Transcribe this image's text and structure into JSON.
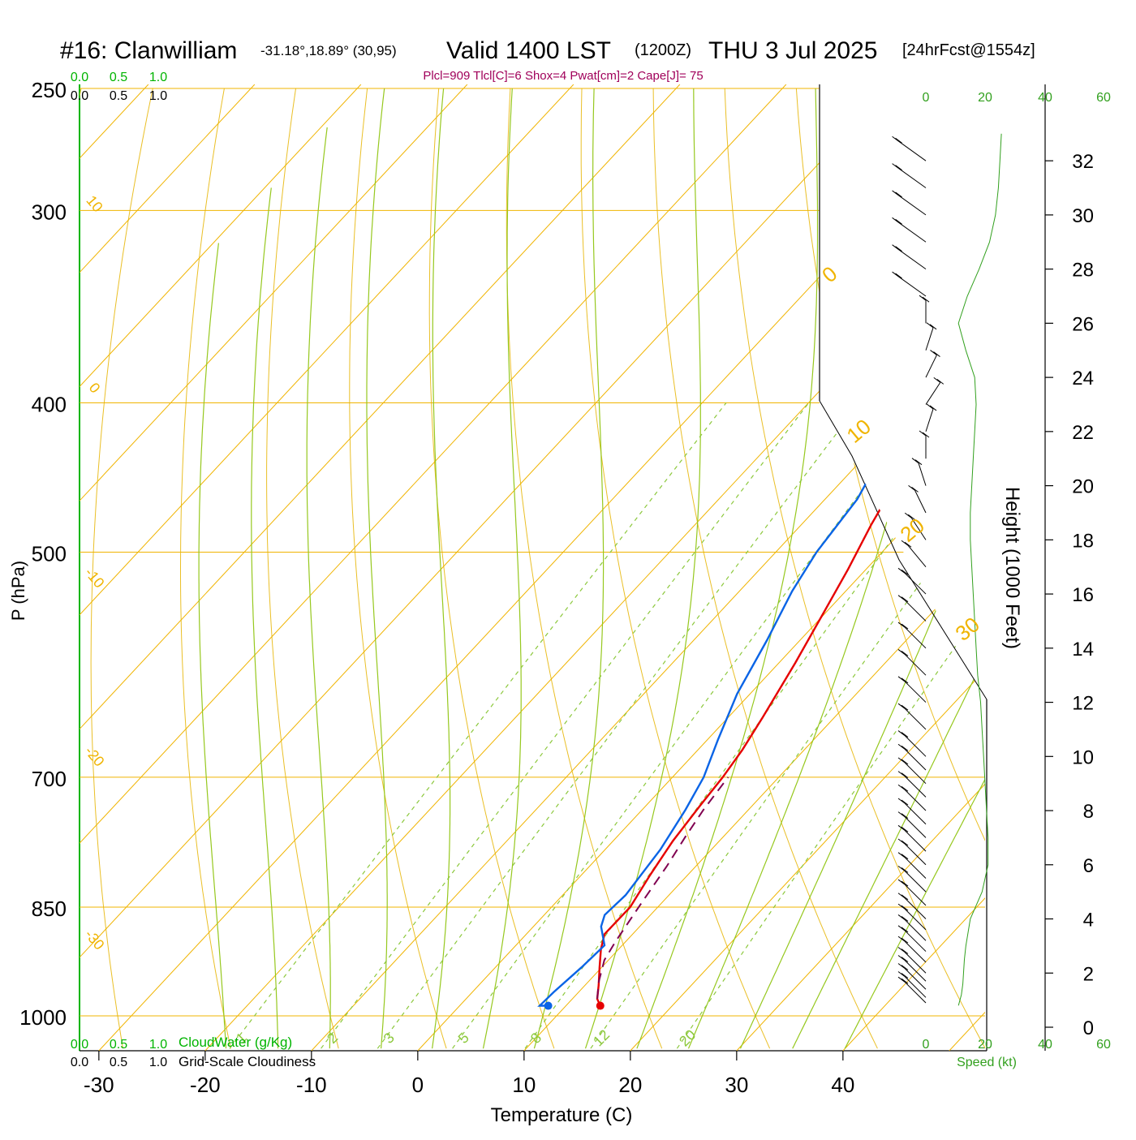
{
  "header": {
    "station": "#16: Clanwilliam",
    "coords": "-31.18°,18.89° (30,95)",
    "valid": "Valid 1400 LST",
    "zulu": "(1200Z)",
    "date": "THU 3 Jul 2025",
    "forecast": "[24hrFcst@1554z]",
    "indices": "Plcl=909 Tlcl[C]=6 Shox=4 Pwat[cm]=2 Cape[J]= 75"
  },
  "colors": {
    "temperature": "#e60000",
    "dewpoint": "#0a64e6",
    "parcel": "#800050",
    "isotherm": "#f0b400",
    "dry_adiabat": "#e6b400",
    "moist_adiabat": "#96c81e",
    "mixing_ratio": "#8cc83c",
    "speed": "#32a01e",
    "cloud": "#00a000",
    "indices": "#a0005a"
  },
  "chart_data": {
    "type": "line",
    "title": "#16: Clanwilliam",
    "xlabel": "Temperature (C)",
    "ylabel": "P (hPa)",
    "y2label": "Height (1000 Feet)",
    "xlim": [
      -34,
      36
    ],
    "ylim": [
      1030,
      250
    ],
    "pressure_ticks": [
      250,
      300,
      400,
      500,
      700,
      850,
      1000
    ],
    "temperature_ticks": [
      -30,
      -20,
      -10,
      0,
      10,
      20,
      30,
      40
    ],
    "height_ticks": [
      0,
      2,
      4,
      6,
      8,
      10,
      12,
      14,
      16,
      18,
      20,
      22,
      24,
      26,
      28,
      30,
      32
    ],
    "scale_top": {
      "cloud": [
        "0.0",
        "0.5",
        "1.0"
      ],
      "cloudiness": [
        "0.0",
        "0.5",
        "1.0"
      ],
      "speed": [
        "0",
        "20",
        "40",
        "60"
      ]
    },
    "scale_bottom": {
      "cloud": [
        "0.0",
        "0.5",
        "1.0"
      ],
      "cloud_label": "CloudWater (g/Kg)",
      "cloudiness": [
        "0.0",
        "0.5",
        "1.0"
      ],
      "cloudiness_label": "Grid-Scale Cloudiness",
      "speed": [
        "0",
        "20",
        "40",
        "60"
      ],
      "speed_label": "Speed (kt)"
    },
    "adiabat_labels_left": [
      "10",
      "0",
      "-10",
      "-20",
      "-30"
    ],
    "adiabat_labels_right": [
      "0",
      "10",
      "20",
      "30"
    ],
    "mixing_ratio_labels": [
      "1",
      "2",
      "3",
      "5",
      "8",
      "12",
      "20"
    ],
    "series": [
      {
        "name": "Temperature",
        "points": [
          [
            14.5,
            985
          ],
          [
            13.6,
            975
          ],
          [
            12.5,
            955
          ],
          [
            11.0,
            930
          ],
          [
            9.5,
            905
          ],
          [
            8.5,
            885
          ],
          [
            8.5,
            850
          ],
          [
            7.5,
            810
          ],
          [
            6.6,
            770
          ],
          [
            6.0,
            730
          ],
          [
            5.6,
            700
          ],
          [
            5.0,
            672
          ],
          [
            4.0,
            640
          ],
          [
            2.2,
            590
          ],
          [
            0.5,
            550
          ],
          [
            -1.2,
            513
          ],
          [
            -3.0,
            480
          ],
          [
            -4.5,
            450
          ],
          [
            -5.6,
            425
          ],
          [
            -6.6,
            405
          ],
          [
            -7.5,
            385
          ],
          [
            -8.0,
            365
          ],
          [
            -8.0,
            350
          ],
          [
            -7.2,
            335
          ],
          [
            -5.5,
            315
          ],
          [
            -3.5,
            297
          ],
          [
            -1.5,
            283
          ],
          [
            0.5,
            270
          ],
          [
            2.2,
            259
          ]
        ]
      },
      {
        "name": "Dewpoint",
        "points": [
          [
            9.6,
            985
          ],
          [
            8.8,
            985
          ],
          [
            8.9,
            965
          ],
          [
            9.3,
            930
          ],
          [
            9.5,
            900
          ],
          [
            7.5,
            875
          ],
          [
            6.8,
            860
          ],
          [
            7.0,
            835
          ],
          [
            6.2,
            780
          ],
          [
            5.0,
            735
          ],
          [
            3.8,
            700
          ],
          [
            1.8,
            662
          ],
          [
            -0.5,
            618
          ],
          [
            -2.5,
            570
          ],
          [
            -4.5,
            530
          ],
          [
            -5.7,
            500
          ],
          [
            -6.6,
            462
          ],
          [
            -8.5,
            428
          ],
          [
            -11.8,
            385
          ],
          [
            -16.0,
            355
          ],
          [
            -22.5,
            335
          ],
          [
            -27.2,
            308
          ],
          [
            -31.5,
            299
          ],
          [
            -32.6,
            285
          ],
          [
            -31.8,
            272
          ],
          [
            -31.0,
            260
          ]
        ]
      },
      {
        "name": "Parcel",
        "points": [
          [
            13.6,
            975
          ],
          [
            12.2,
            950
          ],
          [
            10.8,
            920
          ],
          [
            10.2,
            895
          ],
          [
            9.7,
            870
          ],
          [
            9.2,
            845
          ],
          [
            8.3,
            800
          ],
          [
            7.4,
            765
          ],
          [
            6.7,
            735
          ],
          [
            6.1,
            700
          ]
        ]
      }
    ],
    "height_profile_kft": [
      [
        0,
        26
      ],
      [
        1,
        26
      ],
      [
        2,
        26
      ],
      [
        3,
        24
      ],
      [
        4,
        22
      ],
      [
        5,
        20
      ],
      [
        6,
        20
      ],
      [
        7,
        18
      ],
      [
        8,
        17
      ],
      [
        9,
        15
      ],
      [
        10,
        14
      ],
      [
        11,
        14
      ],
      [
        12,
        14
      ],
      [
        13,
        13
      ],
      [
        14,
        13
      ],
      [
        15,
        12
      ],
      [
        16,
        12
      ],
      [
        17,
        12
      ],
      [
        18,
        12
      ],
      [
        19,
        12
      ],
      [
        20,
        12
      ],
      [
        21,
        12
      ],
      [
        22,
        12
      ],
      [
        23,
        13
      ],
      [
        24,
        14
      ],
      [
        25,
        16
      ],
      [
        26,
        14
      ],
      [
        27,
        16
      ],
      [
        28,
        18
      ],
      [
        29,
        21
      ],
      [
        30,
        23
      ],
      [
        31,
        22
      ],
      [
        32,
        22
      ],
      [
        33,
        22
      ]
    ],
    "speed_profile": [
      [
        0.8,
        11
      ],
      [
        1.2,
        12
      ],
      [
        1.6,
        12.5
      ],
      [
        2.5,
        13
      ],
      [
        3,
        13.5
      ],
      [
        4,
        15
      ],
      [
        5,
        19
      ],
      [
        6,
        21
      ],
      [
        7,
        21
      ],
      [
        8,
        20.5
      ],
      [
        9,
        20
      ],
      [
        10,
        19.5
      ],
      [
        11,
        19
      ],
      [
        12,
        18.5
      ],
      [
        13,
        17.5
      ],
      [
        14,
        17
      ],
      [
        15,
        16.5
      ],
      [
        16,
        16
      ],
      [
        17,
        15.5
      ],
      [
        18,
        15
      ],
      [
        19,
        15
      ],
      [
        20,
        15.5
      ],
      [
        21,
        16
      ],
      [
        22,
        16.5
      ],
      [
        23,
        17
      ],
      [
        24,
        16.5
      ],
      [
        25,
        13.5
      ],
      [
        26,
        11
      ],
      [
        27,
        14
      ],
      [
        28,
        18
      ],
      [
        29,
        21.5
      ],
      [
        30,
        23.5
      ],
      [
        31,
        24.5
      ],
      [
        32,
        25
      ],
      [
        33,
        25.5
      ]
    ],
    "wind_barbs": [
      {
        "z": 0.9,
        "dir": 150,
        "kt": 5
      },
      {
        "z": 1.1,
        "dir": 150,
        "kt": 5
      },
      {
        "z": 1.4,
        "dir": 150,
        "kt": 5
      },
      {
        "z": 1.7,
        "dir": 150,
        "kt": 5
      },
      {
        "z": 2.0,
        "dir": 150,
        "kt": 5
      },
      {
        "z": 2.4,
        "dir": 150,
        "kt": 5
      },
      {
        "z": 2.8,
        "dir": 150,
        "kt": 5
      },
      {
        "z": 3.2,
        "dir": 150,
        "kt": 5
      },
      {
        "z": 3.6,
        "dir": 150,
        "kt": 5
      },
      {
        "z": 4.0,
        "dir": 150,
        "kt": 5
      },
      {
        "z": 4.5,
        "dir": 150,
        "kt": 5
      },
      {
        "z": 5.0,
        "dir": 150,
        "kt": 5
      },
      {
        "z": 5.5,
        "dir": 150,
        "kt": 5
      },
      {
        "z": 6.0,
        "dir": 150,
        "kt": 5
      },
      {
        "z": 6.5,
        "dir": 150,
        "kt": 5
      },
      {
        "z": 7.0,
        "dir": 150,
        "kt": 5
      },
      {
        "z": 7.5,
        "dir": 150,
        "kt": 5
      },
      {
        "z": 8.0,
        "dir": 150,
        "kt": 5
      },
      {
        "z": 8.5,
        "dir": 150,
        "kt": 5
      },
      {
        "z": 9.0,
        "dir": 150,
        "kt": 5
      },
      {
        "z": 9.5,
        "dir": 150,
        "kt": 5
      },
      {
        "z": 10.0,
        "dir": 150,
        "kt": 5
      },
      {
        "z": 11.0,
        "dir": 150,
        "kt": 5
      },
      {
        "z": 12.0,
        "dir": 150,
        "kt": 5
      },
      {
        "z": 13.0,
        "dir": 150,
        "kt": 5
      },
      {
        "z": 14.0,
        "dir": 150,
        "kt": 5
      },
      {
        "z": 15.0,
        "dir": 150,
        "kt": 5
      },
      {
        "z": 16.0,
        "dir": 150,
        "kt": 5
      },
      {
        "z": 17.0,
        "dir": 155,
        "kt": 5
      },
      {
        "z": 18.0,
        "dir": 160,
        "kt": 5
      },
      {
        "z": 19.0,
        "dir": 165,
        "kt": 5
      },
      {
        "z": 20.0,
        "dir": 170,
        "kt": 5
      },
      {
        "z": 21.0,
        "dir": 180,
        "kt": 5
      },
      {
        "z": 22.0,
        "dir": 190,
        "kt": 5
      },
      {
        "z": 23.0,
        "dir": 200,
        "kt": 5
      },
      {
        "z": 24.0,
        "dir": 195,
        "kt": 5
      },
      {
        "z": 25.0,
        "dir": 190,
        "kt": 5
      },
      {
        "z": 26.0,
        "dir": 180,
        "kt": 5
      },
      {
        "z": 27.0,
        "dir": 140,
        "kt": 5
      },
      {
        "z": 28.0,
        "dir": 140,
        "kt": 5
      },
      {
        "z": 29.0,
        "dir": 140,
        "kt": 5
      },
      {
        "z": 30.0,
        "dir": 140,
        "kt": 5
      },
      {
        "z": 31.0,
        "dir": 140,
        "kt": 5
      },
      {
        "z": 32.0,
        "dir": 140,
        "kt": 5
      }
    ]
  }
}
